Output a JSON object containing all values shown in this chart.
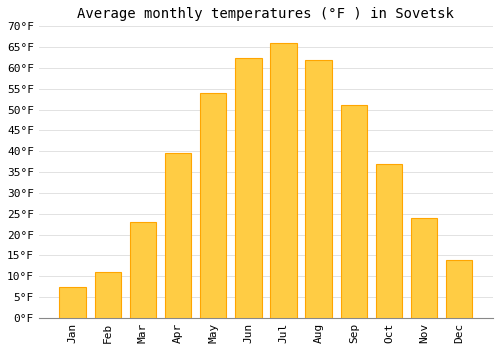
{
  "title": "Average monthly temperatures (°F ) in Sovetsk",
  "months": [
    "Jan",
    "Feb",
    "Mar",
    "Apr",
    "May",
    "Jun",
    "Jul",
    "Aug",
    "Sep",
    "Oct",
    "Nov",
    "Dec"
  ],
  "values": [
    7.5,
    11,
    23,
    39.5,
    54,
    62.5,
    66,
    62,
    51,
    37,
    24,
    14
  ],
  "bar_color_light": "#FFCC44",
  "bar_color_dark": "#FFA500",
  "ylim": [
    0,
    70
  ],
  "yticks": [
    0,
    5,
    10,
    15,
    20,
    25,
    30,
    35,
    40,
    45,
    50,
    55,
    60,
    65,
    70
  ],
  "background_color": "#FFFFFF",
  "grid_color": "#DDDDDD",
  "title_fontsize": 10,
  "tick_fontsize": 8,
  "bar_width": 0.75
}
